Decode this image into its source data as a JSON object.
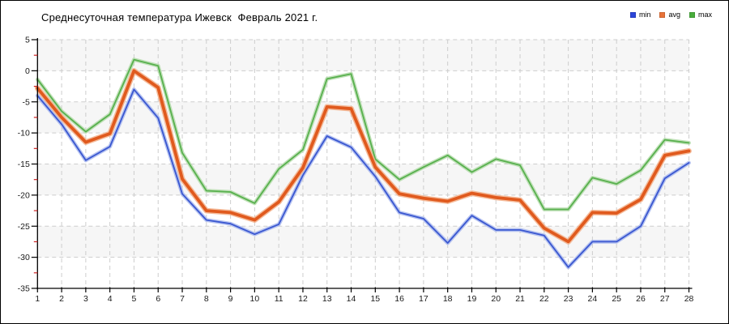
{
  "title": "Среднесуточная температура Ижевск  Февраль 2021 г.",
  "legend": {
    "items": [
      {
        "label": "min",
        "color": "#2c46d9"
      },
      {
        "label": "avg",
        "color": "#e8733a"
      },
      {
        "label": "max",
        "color": "#48ad3c"
      }
    ]
  },
  "chart_data": {
    "type": "line",
    "title": "Среднесуточная температура Ижевск  Февраль 2021 г.",
    "xlabel": "",
    "ylabel": "",
    "x": [
      1,
      2,
      3,
      4,
      5,
      6,
      7,
      8,
      9,
      10,
      11,
      12,
      13,
      14,
      15,
      16,
      17,
      18,
      19,
      20,
      21,
      22,
      23,
      24,
      25,
      26,
      27,
      28
    ],
    "ylim": [
      -35,
      5
    ],
    "y_tick_step": 5,
    "y_minor_tick_step": 2.5,
    "grid": true,
    "background_bands": true,
    "legend_position": "top-right",
    "series": [
      {
        "name": "min",
        "color": "#3a57d0",
        "halo": "#a9b8ee",
        "width": 1.8,
        "values": [
          -4.0,
          -8.6,
          -14.4,
          -12.2,
          -3.0,
          -7.6,
          -19.8,
          -24.0,
          -24.6,
          -26.3,
          -24.7,
          -16.8,
          -10.5,
          -12.3,
          -17.0,
          -22.8,
          -23.8,
          -27.7,
          -23.3,
          -25.6,
          -25.6,
          -26.5,
          -31.6,
          -27.5,
          -27.5,
          -25.0,
          -17.3,
          -14.8
        ]
      },
      {
        "name": "avg",
        "color": "#e05a1e",
        "halo": "#f3b08a",
        "width": 3.8,
        "values": [
          -2.8,
          -7.5,
          -11.5,
          -10.1,
          0.0,
          -2.7,
          -17.4,
          -22.5,
          -22.8,
          -24.0,
          -21.1,
          -15.6,
          -5.8,
          -6.1,
          -15.5,
          -19.8,
          -20.5,
          -21.0,
          -19.7,
          -20.4,
          -20.8,
          -25.3,
          -27.5,
          -22.8,
          -22.9,
          -20.7,
          -13.6,
          -12.9
        ]
      },
      {
        "name": "max",
        "color": "#58b04e",
        "halo": "#b5dcab",
        "width": 1.8,
        "values": [
          -1.4,
          -6.5,
          -9.8,
          -7.0,
          1.8,
          0.8,
          -13.2,
          -19.3,
          -19.5,
          -21.3,
          -15.8,
          -12.7,
          -1.3,
          -0.5,
          -14.2,
          -17.5,
          -15.5,
          -13.6,
          -16.3,
          -14.2,
          -15.2,
          -22.3,
          -22.3,
          -17.2,
          -18.2,
          -16.0,
          -11.1,
          -11.6
        ]
      }
    ]
  },
  "axes": {
    "y_tick_labels": [
      "5",
      "0",
      "-5",
      "-10",
      "-15",
      "-20",
      "-25",
      "-30",
      "-35"
    ],
    "x_tick_labels": [
      "1",
      "2",
      "3",
      "4",
      "5",
      "6",
      "7",
      "8",
      "9",
      "10",
      "11",
      "12",
      "13",
      "14",
      "15",
      "16",
      "17",
      "18",
      "19",
      "20",
      "21",
      "22",
      "23",
      "24",
      "25",
      "26",
      "27",
      "28"
    ]
  },
  "colors": {
    "grid": "#cdcdcd",
    "band": "#f6f6f6",
    "axis": "#000000",
    "minor_tick": "#cc2222",
    "tick_label": "#1a1a1a",
    "background": "#ffffff"
  }
}
